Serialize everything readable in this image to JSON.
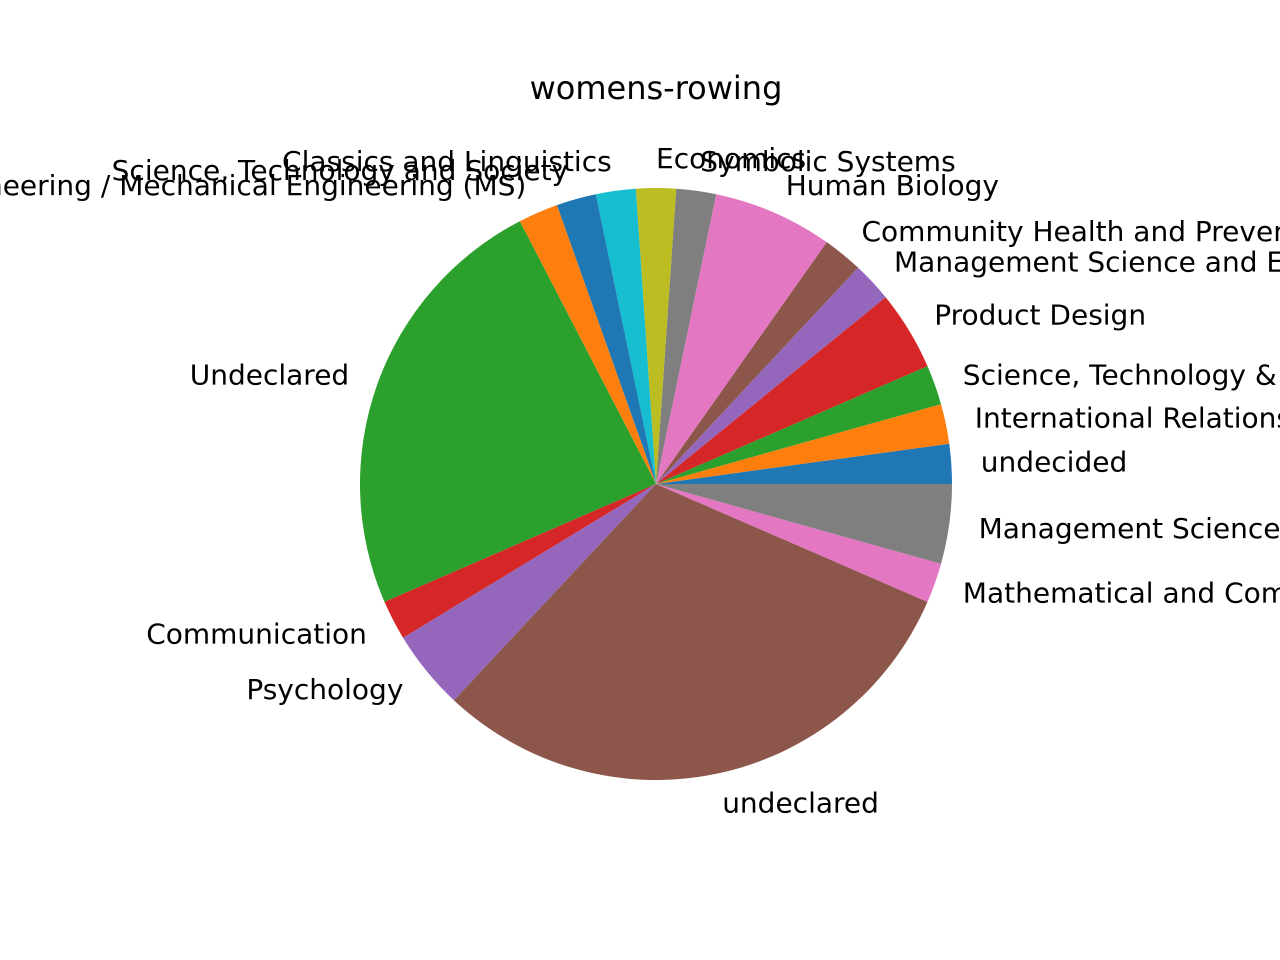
{
  "chart_data": {
    "type": "pie",
    "title": "womens-rowing",
    "start_angle_deg": 0,
    "direction": "counterclockwise",
    "slices": [
      {
        "label": "undecided",
        "value": 1,
        "color": "#1f77b4"
      },
      {
        "label": "International Relations",
        "value": 1,
        "color": "#ff7f0e"
      },
      {
        "label": "Science, Technology & Society",
        "value": 1,
        "color": "#2ca02c"
      },
      {
        "label": "Product Design",
        "value": 2,
        "color": "#d62728"
      },
      {
        "label": "Management Science and Engineering",
        "value": 1,
        "color": "#9467bd"
      },
      {
        "label": "Community Health and Prevention Research",
        "value": 1,
        "color": "#8c564b"
      },
      {
        "label": "Human Biology",
        "value": 3,
        "color": "#e377c2"
      },
      {
        "label": "Symbolic Systems",
        "value": 1,
        "color": "#7f7f7f"
      },
      {
        "label": "Economics",
        "value": 1,
        "color": "#bcbd22"
      },
      {
        "label": "Classics and Linguistics",
        "value": 1,
        "color": "#17becf"
      },
      {
        "label": "Science, Technology and Society",
        "value": 1,
        "color": "#1f77b4"
      },
      {
        "label": "Engineering / Mechanical Engineering (MS)",
        "value": 1,
        "color": "#ff7f0e"
      },
      {
        "label": "Undeclared",
        "value": 11,
        "color": "#2ca02c"
      },
      {
        "label": "Communication",
        "value": 1,
        "color": "#d62728"
      },
      {
        "label": "Psychology",
        "value": 2,
        "color": "#9467bd"
      },
      {
        "label": "undeclared",
        "value": 14,
        "color": "#8c564b"
      },
      {
        "label": "Mathematical and Computational Science",
        "value": 1,
        "color": "#e377c2"
      },
      {
        "label": "Management Science & Engineering",
        "value": 2,
        "color": "#7f7f7f"
      }
    ]
  }
}
